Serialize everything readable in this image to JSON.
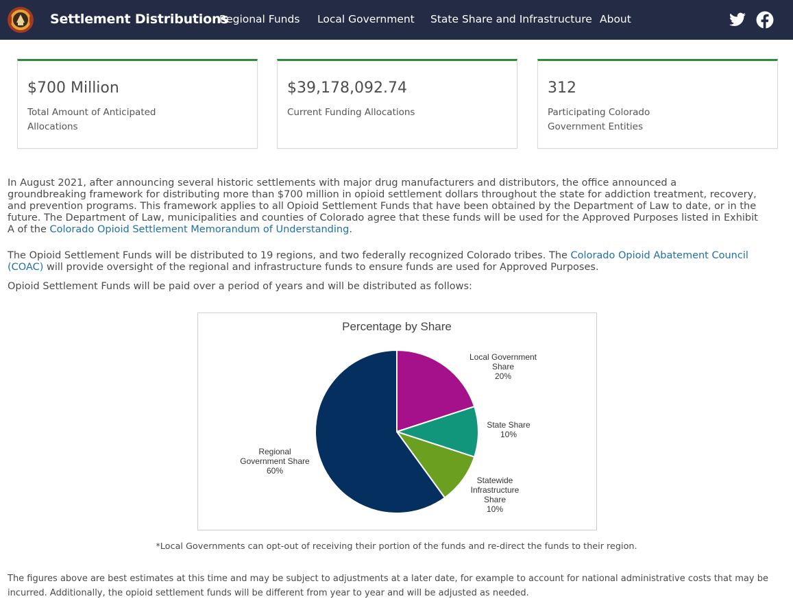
{
  "header": {
    "title": "Settlement Distributions",
    "nav": [
      "Regional Funds",
      "Local Government",
      "State Share and Infrastructure",
      "About"
    ],
    "social_icons": [
      "twitter-icon",
      "facebook-icon"
    ],
    "background_color": "#242b45"
  },
  "cards": [
    {
      "value": "$700 Million",
      "label": "Total Amount of Anticipated Allocations"
    },
    {
      "value": "$39,178,092.74",
      "label": "Current Funding Allocations"
    },
    {
      "value": "312",
      "label": "Participating Colorado Government Entities"
    }
  ],
  "intro": {
    "p1_text": "In August 2021, after announcing several historic settlements with major drug manufacturers and distributors, the office announced a groundbreaking framework for distributing more than $700 million in opioid settlement dollars throughout the state for addiction treatment, recovery, and prevention programs.  This framework applies to all Opioid Settlement Funds that have been obtained by the Department of Law to date, or in the future.  The Department of Law, municipalities and counties of Colorado agree that these funds will be used for the Approved Purposes listed in Exhibit A of the ",
    "p1_link": "Colorado Opioid Settlement Memorandum of Understanding",
    "p1_end": ".",
    "p2_text": "The Opioid Settlement Funds will be distributed to 19 regions, and two federally recognized Colorado tribes. The ",
    "p2_link": "Colorado Opioid Abatement Council (COAC)",
    "p2_end": " will provide oversight of the regional and infrastructure funds to ensure funds are used for Approved Purposes.",
    "p3_text": "Opioid Settlement Funds will be paid over a period of years and will be distributed as follows:"
  },
  "chart_data": {
    "type": "pie",
    "title": "Percentage by Share",
    "slices": [
      {
        "label_lines": [
          "Local Government",
          "Share",
          "20%"
        ],
        "value": 20,
        "color": "#a5118a"
      },
      {
        "label_lines": [
          "State Share",
          "10%"
        ],
        "value": 10,
        "color": "#12967b"
      },
      {
        "label_lines": [
          "Statewide",
          "Infrastructure",
          "Share",
          "10%"
        ],
        "value": 10,
        "color": "#6a9f20"
      },
      {
        "label_lines": [
          "Regional",
          "Government Share",
          "60%"
        ],
        "value": 60,
        "color": "#042f5e"
      }
    ]
  },
  "footnote": "*Local Governments can opt-out of receiving their portion of the funds and re-direct the funds to their region.",
  "bottom_text": "The figures above are best estimates at this time and may be subject to adjustments at a later date, for example to account for national administrative costs that may be incurred. Additionally, the opioid settlement funds will be different from year to year and will be adjusted as needed."
}
